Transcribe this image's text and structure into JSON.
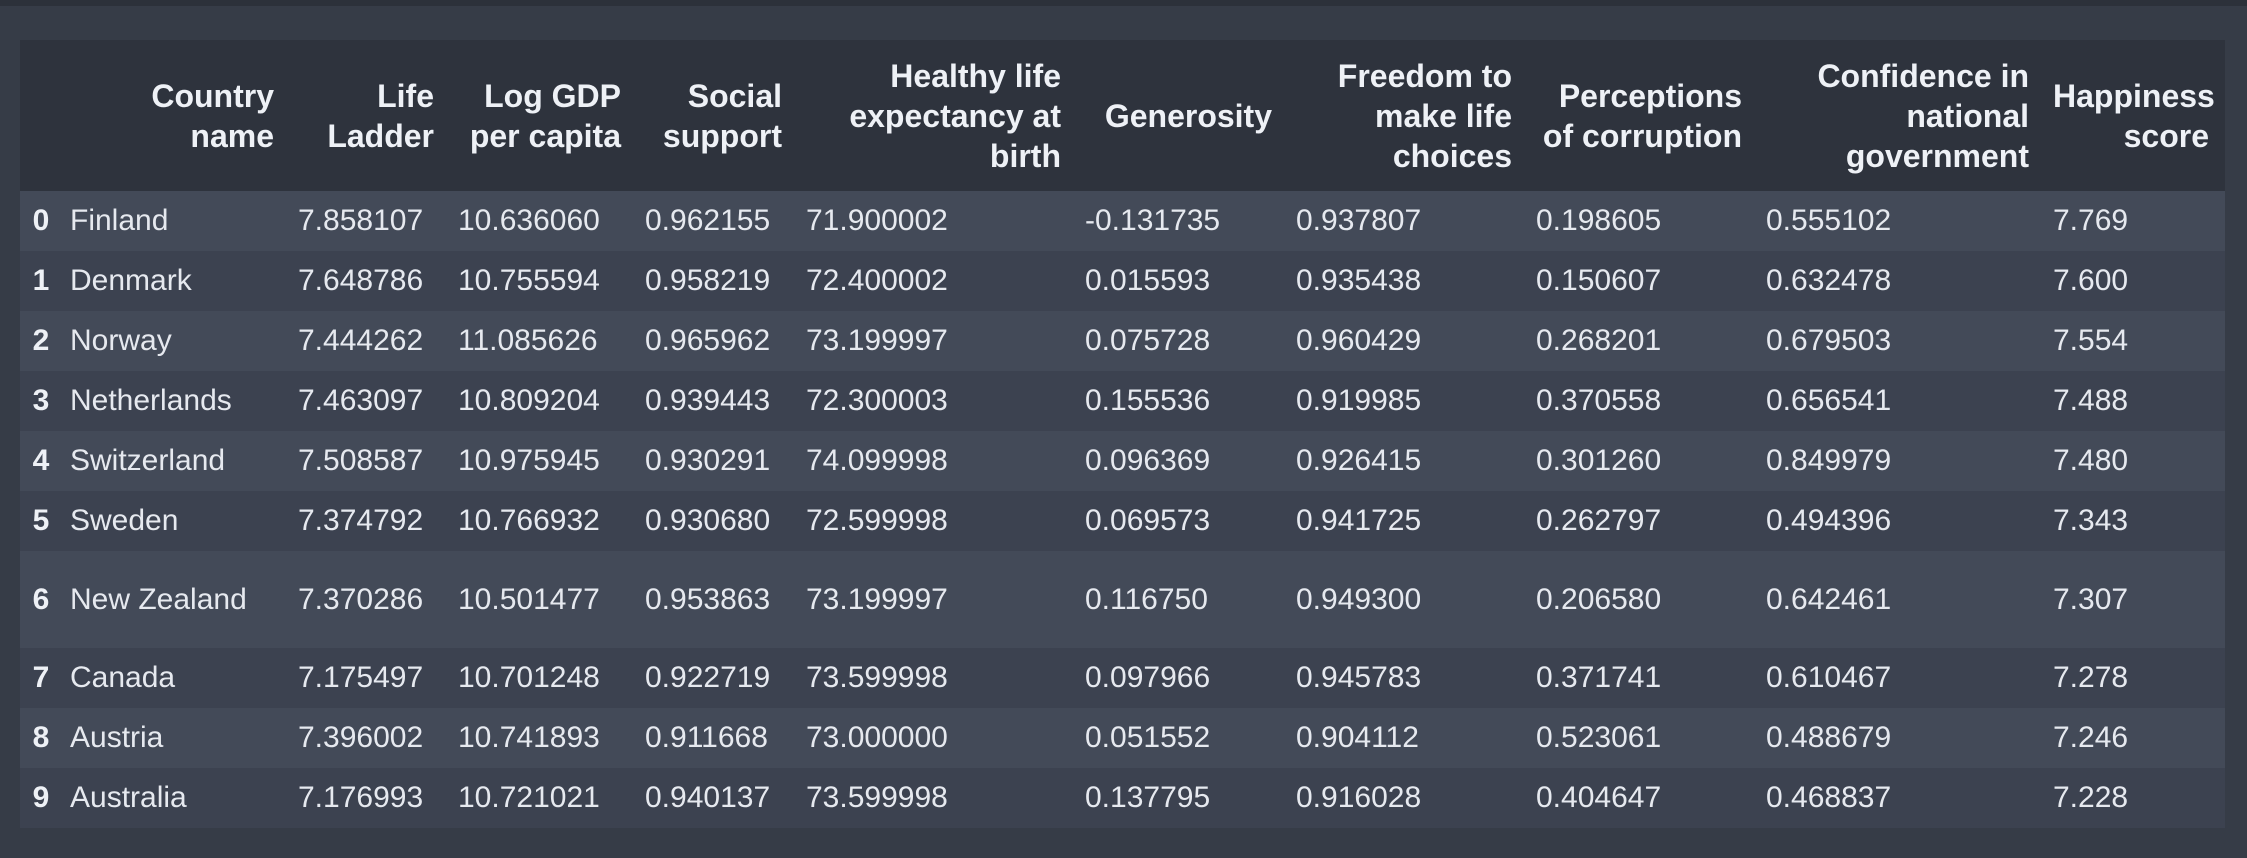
{
  "table": {
    "index_header": "",
    "columns": [
      "Country name",
      "Life Ladder",
      "Log GDP per capita",
      "Social support",
      "Healthy life expectancy at birth",
      "Generosity",
      "Freedom to make life choices",
      "Perceptions of corruption",
      "Confidence in national government",
      "Happiness score"
    ],
    "rows": [
      {
        "index": "0",
        "cells": [
          "Finland",
          "7.858107",
          "10.636060",
          "0.962155",
          "71.900002",
          "-0.131735",
          "0.937807",
          "0.198605",
          "0.555102",
          "7.769"
        ]
      },
      {
        "index": "1",
        "cells": [
          "Denmark",
          "7.648786",
          "10.755594",
          "0.958219",
          "72.400002",
          "0.015593",
          "0.935438",
          "0.150607",
          "0.632478",
          "7.600"
        ]
      },
      {
        "index": "2",
        "cells": [
          "Norway",
          "7.444262",
          "11.085626",
          "0.965962",
          "73.199997",
          "0.075728",
          "0.960429",
          "0.268201",
          "0.679503",
          "7.554"
        ]
      },
      {
        "index": "3",
        "cells": [
          "Netherlands",
          "7.463097",
          "10.809204",
          "0.939443",
          "72.300003",
          "0.155536",
          "0.919985",
          "0.370558",
          "0.656541",
          "7.488"
        ]
      },
      {
        "index": "4",
        "cells": [
          "Switzerland",
          "7.508587",
          "10.975945",
          "0.930291",
          "74.099998",
          "0.096369",
          "0.926415",
          "0.301260",
          "0.849979",
          "7.480"
        ]
      },
      {
        "index": "5",
        "cells": [
          "Sweden",
          "7.374792",
          "10.766932",
          "0.930680",
          "72.599998",
          "0.069573",
          "0.941725",
          "0.262797",
          "0.494396",
          "7.343"
        ]
      },
      {
        "index": "6",
        "cells": [
          "New Zealand",
          "7.370286",
          "10.501477",
          "0.953863",
          "73.199997",
          "0.116750",
          "0.949300",
          "0.206580",
          "0.642461",
          "7.307"
        ]
      },
      {
        "index": "7",
        "cells": [
          "Canada",
          "7.175497",
          "10.701248",
          "0.922719",
          "73.599998",
          "0.097966",
          "0.945783",
          "0.371741",
          "0.610467",
          "7.278"
        ]
      },
      {
        "index": "8",
        "cells": [
          "Austria",
          "7.396002",
          "10.741893",
          "0.911668",
          "73.000000",
          "0.051552",
          "0.904112",
          "0.523061",
          "0.488679",
          "7.246"
        ]
      },
      {
        "index": "9",
        "cells": [
          "Australia",
          "7.176993",
          "10.721021",
          "0.940137",
          "73.599998",
          "0.137795",
          "0.916028",
          "0.404647",
          "0.468837",
          "7.228"
        ]
      }
    ]
  },
  "colors": {
    "page_background": "#363c47",
    "header_background": "#2e333d",
    "row_odd": "#434a58",
    "row_even": "#3c4250",
    "text": "#e8ecf2"
  }
}
